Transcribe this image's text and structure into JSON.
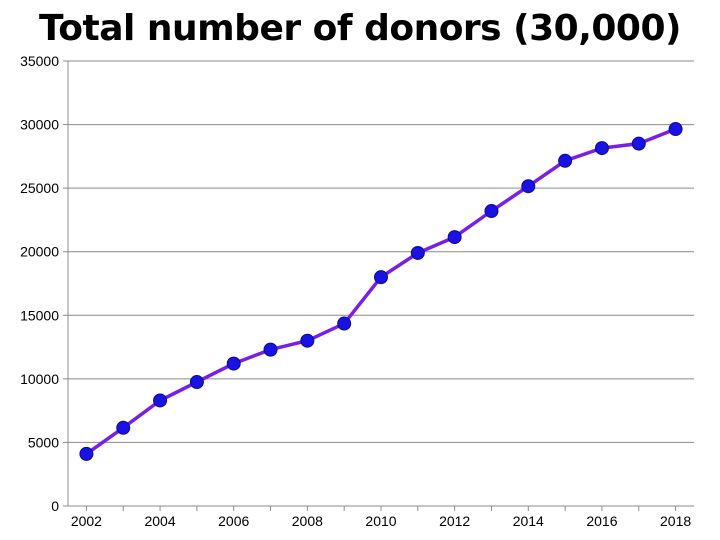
{
  "chart_data": {
    "type": "line",
    "title": "Total number of donors (30,000)",
    "xlabel": "",
    "ylabel": "",
    "x": [
      2002,
      2003,
      2004,
      2005,
      2006,
      2007,
      2008,
      2009,
      2010,
      2011,
      2012,
      2013,
      2014,
      2015,
      2016,
      2017,
      2018
    ],
    "series": [
      {
        "values": [
          4100,
          6150,
          8300,
          9750,
          11200,
          12300,
          13000,
          14350,
          18000,
          19900,
          21150,
          23200,
          25150,
          27150,
          28150,
          28500,
          29650
        ]
      }
    ],
    "x_ticks": [
      2002,
      2004,
      2006,
      2008,
      2010,
      2012,
      2014,
      2016,
      2018
    ],
    "y_ticks": [
      0,
      5000,
      10000,
      15000,
      20000,
      25000,
      30000,
      35000
    ],
    "xlim": [
      2001.5,
      2018.5
    ],
    "ylim": [
      0,
      35000
    ],
    "grid": "horizontal",
    "legend": "none",
    "colors": {
      "line": "#7a1fe6",
      "marker": "#1a12e0",
      "marker_edge": "#0a0a9a",
      "grid": "#8c8c8c",
      "axis": "#8c8c8c"
    }
  }
}
